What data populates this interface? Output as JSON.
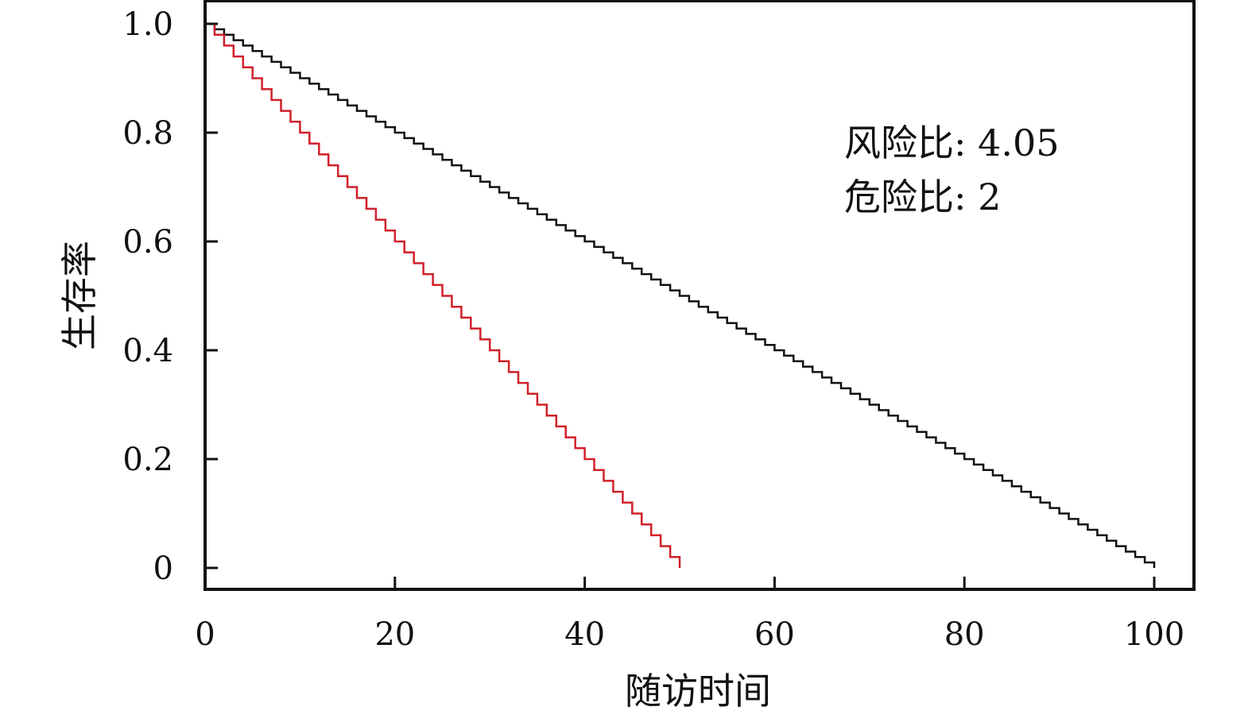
{
  "chart_data": {
    "type": "line",
    "title": "",
    "xlabel": "随访时间",
    "ylabel": "生存率",
    "xlim": [
      0,
      100
    ],
    "ylim": [
      0,
      1.0
    ],
    "x_ticks": [
      0,
      20,
      40,
      60,
      80,
      100
    ],
    "x_tick_labels": [
      "0",
      "20",
      "40",
      "60",
      "80",
      "100"
    ],
    "y_ticks": [
      0,
      0.2,
      0.4,
      0.6,
      0.8,
      1.0
    ],
    "y_tick_labels": [
      "0",
      "0.2",
      "0.4",
      "0.6",
      "0.8",
      "1.0"
    ],
    "grid": false,
    "series": [
      {
        "color": "#111111",
        "step": "post",
        "x": [
          0,
          1,
          2,
          3,
          4,
          5,
          6,
          7,
          8,
          9,
          10,
          11,
          12,
          13,
          14,
          15,
          16,
          17,
          18,
          19,
          20,
          21,
          22,
          23,
          24,
          25,
          26,
          27,
          28,
          29,
          30,
          31,
          32,
          33,
          34,
          35,
          36,
          37,
          38,
          39,
          40,
          41,
          42,
          43,
          44,
          45,
          46,
          47,
          48,
          49,
          50,
          51,
          52,
          53,
          54,
          55,
          56,
          57,
          58,
          59,
          60,
          61,
          62,
          63,
          64,
          65,
          66,
          67,
          68,
          69,
          70,
          71,
          72,
          73,
          74,
          75,
          76,
          77,
          78,
          79,
          80,
          81,
          82,
          83,
          84,
          85,
          86,
          87,
          88,
          89,
          90,
          91,
          92,
          93,
          94,
          95,
          96,
          97,
          98,
          99,
          100
        ],
        "y": [
          1.0,
          0.99,
          0.98,
          0.97,
          0.96,
          0.95,
          0.94,
          0.93,
          0.92,
          0.91,
          0.9,
          0.89,
          0.88,
          0.87,
          0.86,
          0.85,
          0.84,
          0.83,
          0.82,
          0.81,
          0.8,
          0.79,
          0.78,
          0.77,
          0.76,
          0.75,
          0.74,
          0.73,
          0.72,
          0.71,
          0.7,
          0.69,
          0.68,
          0.67,
          0.66,
          0.65,
          0.64,
          0.63,
          0.62,
          0.61,
          0.6,
          0.59,
          0.58,
          0.57,
          0.56,
          0.55,
          0.54,
          0.53,
          0.52,
          0.51,
          0.5,
          0.49,
          0.48,
          0.47,
          0.46,
          0.45,
          0.44,
          0.43,
          0.42,
          0.41,
          0.4,
          0.39,
          0.38,
          0.37,
          0.36,
          0.35,
          0.34,
          0.33,
          0.32,
          0.31,
          0.3,
          0.29,
          0.28,
          0.27,
          0.26,
          0.25,
          0.24,
          0.23,
          0.22,
          0.21,
          0.2,
          0.19,
          0.18,
          0.17,
          0.16,
          0.15,
          0.14,
          0.13,
          0.12,
          0.11,
          0.1,
          0.09,
          0.08,
          0.07,
          0.06,
          0.05,
          0.04,
          0.03,
          0.02,
          0.01,
          0.0
        ]
      },
      {
        "color": "#d0202a",
        "step": "post",
        "x": [
          0,
          1,
          2,
          3,
          4,
          5,
          6,
          7,
          8,
          9,
          10,
          11,
          12,
          13,
          14,
          15,
          16,
          17,
          18,
          19,
          20,
          21,
          22,
          23,
          24,
          25,
          26,
          27,
          28,
          29,
          30,
          31,
          32,
          33,
          34,
          35,
          36,
          37,
          38,
          39,
          40,
          41,
          42,
          43,
          44,
          45,
          46,
          47,
          48,
          49,
          50
        ],
        "y": [
          1.0,
          0.98,
          0.96,
          0.94,
          0.92,
          0.9,
          0.88,
          0.86,
          0.84,
          0.82,
          0.8,
          0.78,
          0.76,
          0.74,
          0.72,
          0.7,
          0.68,
          0.66,
          0.64,
          0.62,
          0.6,
          0.58,
          0.56,
          0.54,
          0.52,
          0.5,
          0.48,
          0.46,
          0.44,
          0.42,
          0.4,
          0.38,
          0.36,
          0.34,
          0.32,
          0.3,
          0.28,
          0.26,
          0.24,
          0.22,
          0.2,
          0.18,
          0.16,
          0.14,
          0.12,
          0.1,
          0.08,
          0.06,
          0.04,
          0.02,
          0.0
        ]
      }
    ],
    "annotations": [
      "风险比: 4.05",
      "危险比: 2"
    ]
  }
}
